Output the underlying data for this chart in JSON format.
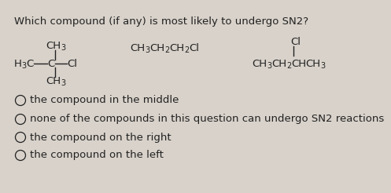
{
  "title": "Which compound (if any) is most likely to undergo SN2?",
  "bg_color": "#d8d2ca",
  "text_color": "#222222",
  "choices": [
    "the compound in the middle",
    "none of the compounds in this question can undergo SN2 reactions",
    "the compound on the right",
    "the compound on the left"
  ]
}
